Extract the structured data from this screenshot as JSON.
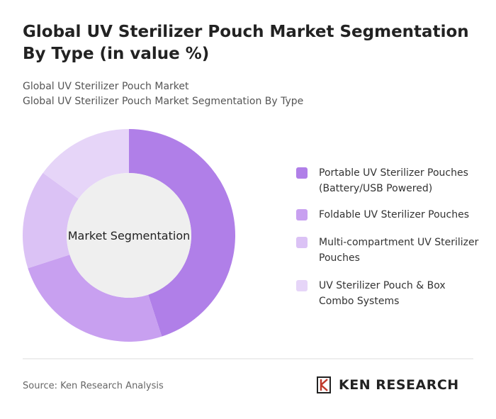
{
  "title": "Global UV Sterilizer Pouch Market Segmentation By Type (in value %)",
  "subtitle_lines": [
    "Global UV Sterilizer Pouch Market",
    "Global UV Sterilizer Pouch Market Segmentation By Type"
  ],
  "chart_data": {
    "type": "donut",
    "center_label": "Market Segmentation",
    "categories": [
      "Portable UV Sterilizer Pouches (Battery/USB Powered)",
      "Foldable UV Sterilizer Pouches",
      "Multi-compartment UV Sterilizer Pouches",
      "UV Sterilizer Pouch & Box Combo Systems"
    ],
    "values": [
      45,
      25,
      15,
      15
    ],
    "colors": [
      "#b07fe8",
      "#c8a0f0",
      "#dbc2f5",
      "#e6d5f8"
    ]
  },
  "source": "Source: Ken Research Analysis",
  "logo": "KEN RESEARCH"
}
